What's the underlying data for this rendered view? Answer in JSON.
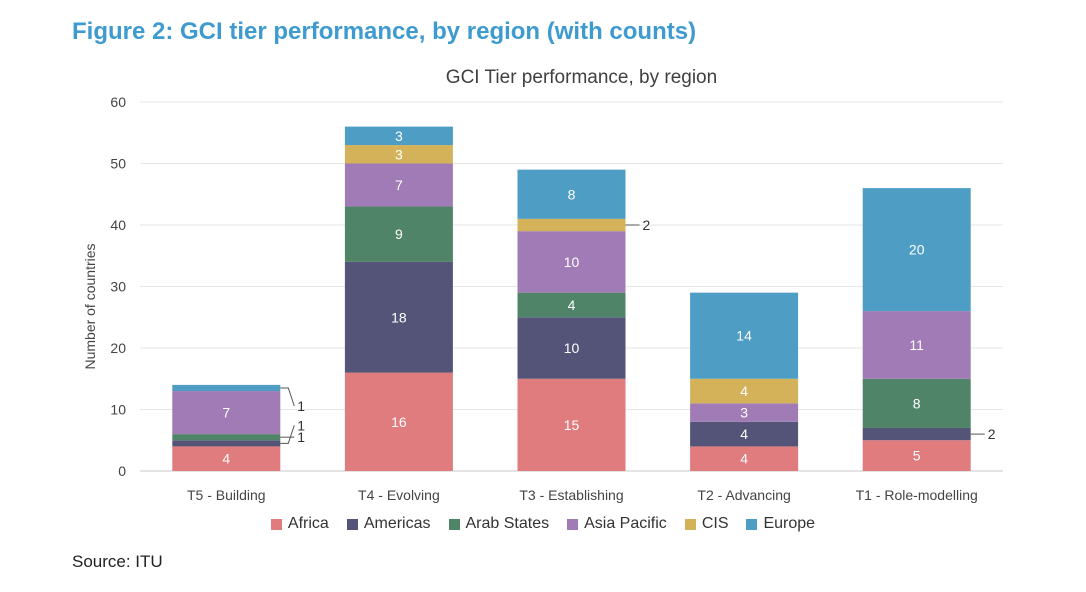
{
  "figure_title": "Figure 2: GCI tier performance, by region (with counts)",
  "source": "Source: ITU",
  "chart_data": {
    "type": "bar",
    "stacked": true,
    "title": "GCI Tier performance, by region",
    "xlabel": "",
    "ylabel": "Number of countries",
    "ylim": [
      0,
      60
    ],
    "yticks": [
      0,
      10,
      20,
      30,
      40,
      50,
      60
    ],
    "grid": true,
    "legend_position": "bottom",
    "categories": [
      "T5 - Building",
      "T4 - Evolving",
      "T3 - Establishing",
      "T2 - Advancing",
      "T1 - Role-modelling"
    ],
    "series": [
      {
        "name": "Africa",
        "color": "#e07b7e",
        "values": [
          4,
          16,
          15,
          4,
          5
        ]
      },
      {
        "name": "Americas",
        "color": "#545479",
        "values": [
          1,
          18,
          10,
          4,
          2
        ]
      },
      {
        "name": "Arab States",
        "color": "#508468",
        "values": [
          1,
          9,
          4,
          0,
          8
        ]
      },
      {
        "name": "Asia Pacific",
        "color": "#a07bb5",
        "values": [
          7,
          7,
          10,
          3,
          11
        ]
      },
      {
        "name": "CIS",
        "color": "#d4b25a",
        "values": [
          0,
          3,
          2,
          4,
          0
        ]
      },
      {
        "name": "Europe",
        "color": "#4d9dc5",
        "values": [
          1,
          3,
          8,
          14,
          20
        ]
      }
    ]
  }
}
